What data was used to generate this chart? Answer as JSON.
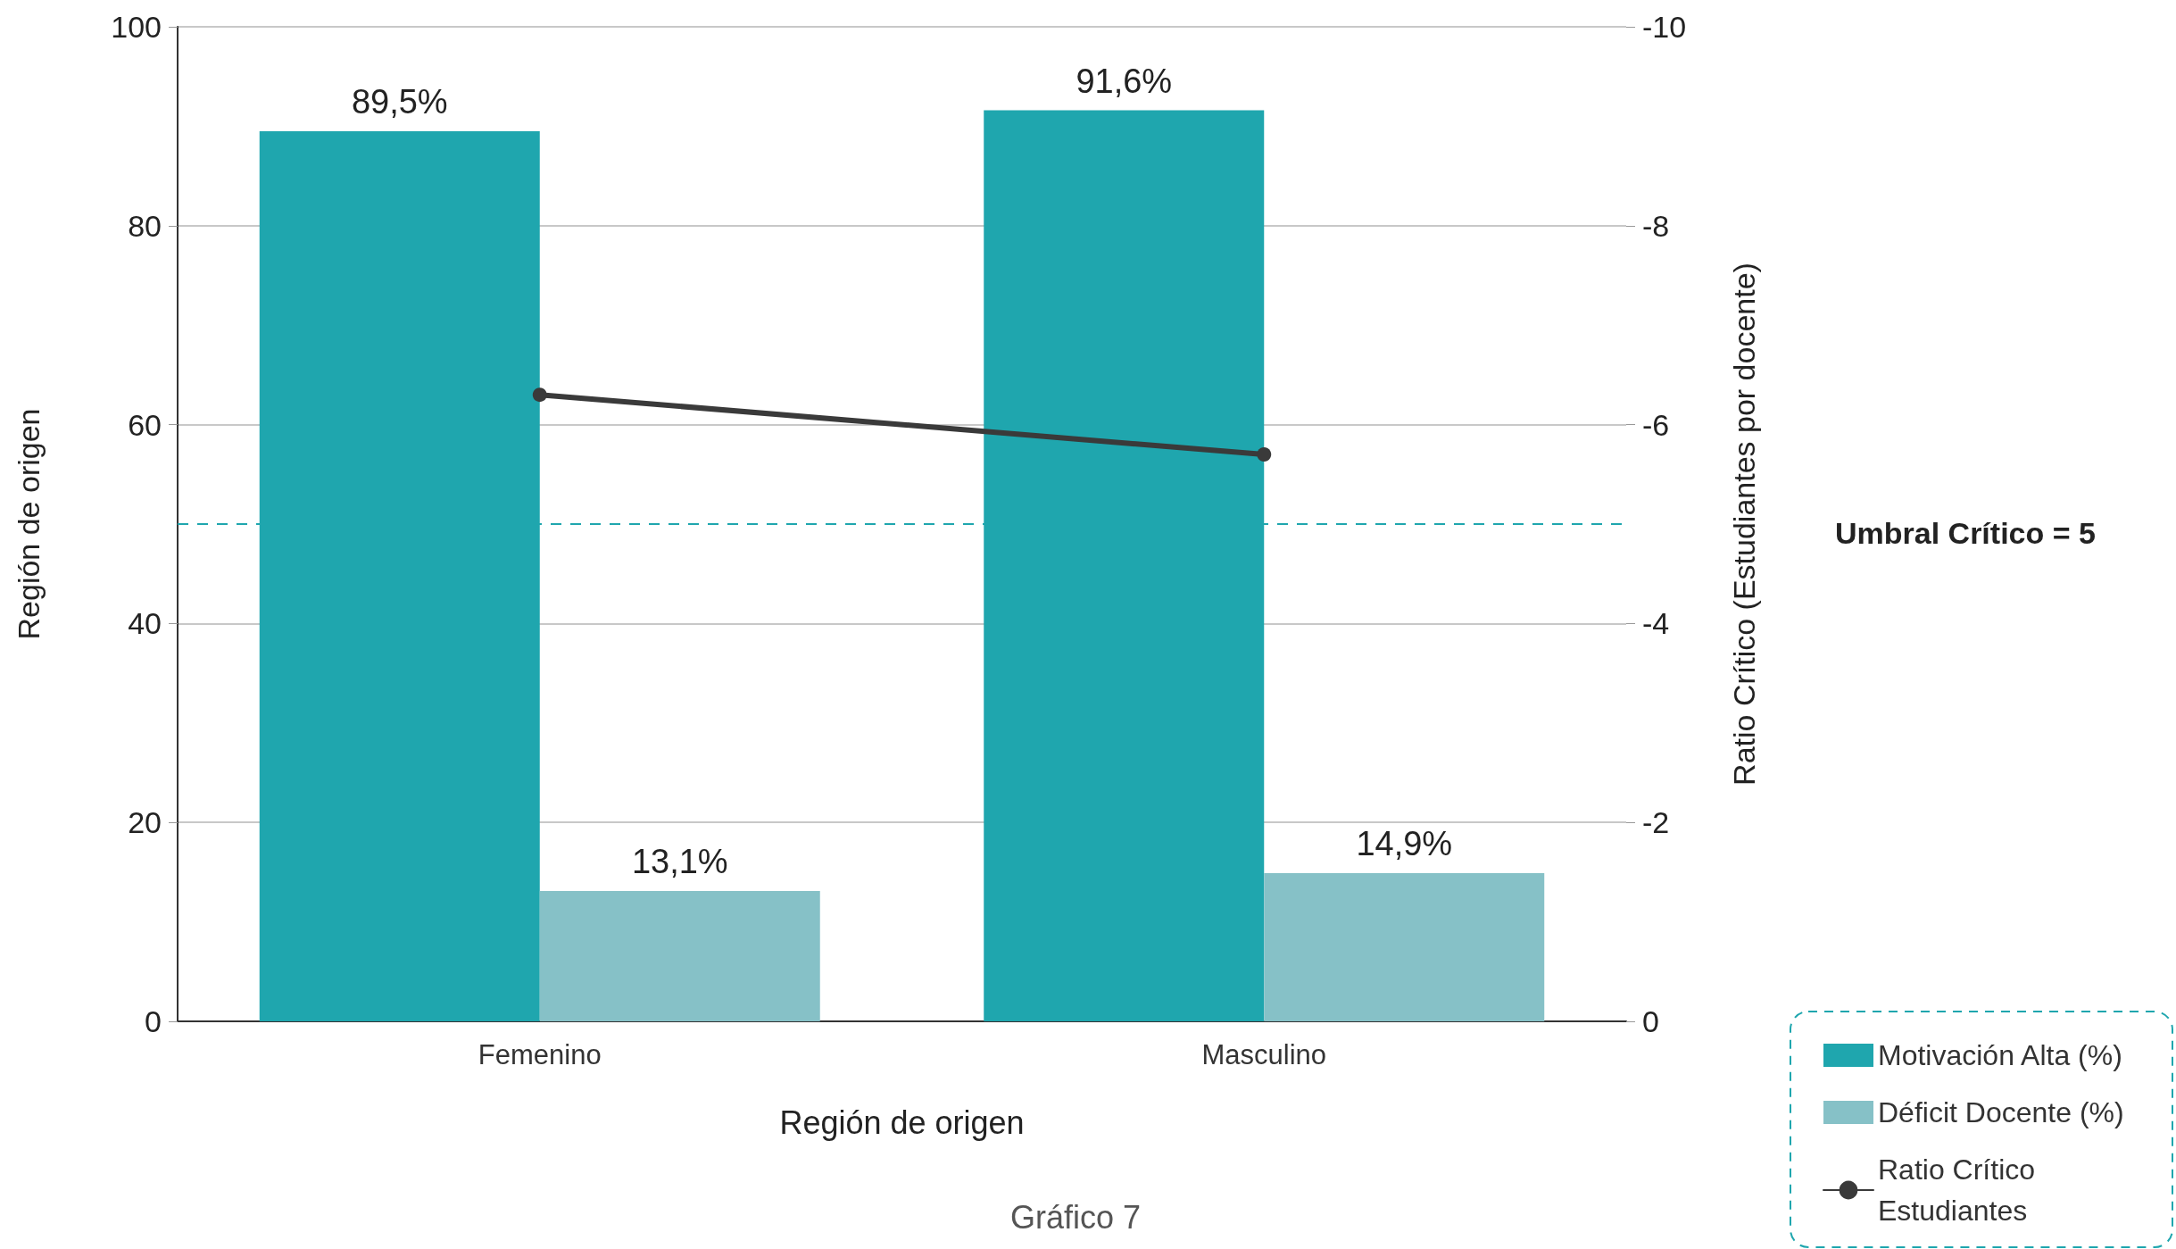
{
  "chart_data": {
    "type": "bar",
    "xlabel": "Región de origen",
    "ylabel": "Región de origen",
    "y2label": "Ratio Crítico (Estudiantes por docente)",
    "categories": [
      "Femenino",
      "Masculino"
    ],
    "series": [
      {
        "name": "Motivación Alta (%)",
        "color": "#1fa6ae",
        "values": [
          89.5,
          91.6
        ],
        "value_labels": [
          "89,5%",
          "91,6%"
        ]
      },
      {
        "name": "Déficit Docente (%)",
        "color": "#86c1c7",
        "values": [
          13.1,
          14.9
        ],
        "value_labels": [
          "13,1%",
          "14,9%"
        ]
      },
      {
        "name": "Ratio Crítico Estudiantes",
        "type": "line",
        "axis": "y2",
        "color": "#3a3a3a",
        "values": [
          -6.3,
          -5.7
        ],
        "marker": "circle"
      }
    ],
    "ylim": [
      0,
      100
    ],
    "yticks": [
      0,
      20,
      40,
      60,
      80,
      100
    ],
    "y2lim": [
      0,
      -10
    ],
    "y2ticks": [
      0,
      -2,
      -4,
      -6,
      -8,
      -10
    ],
    "ref_lines": [
      {
        "axis": "y2",
        "value": -5,
        "color": "#1fa6ae",
        "line_style": "dashed"
      }
    ],
    "annotations": [
      "Umbral Crítico = 5",
      "Gráfico 7"
    ],
    "grid": "y",
    "legend": "bottom right"
  }
}
